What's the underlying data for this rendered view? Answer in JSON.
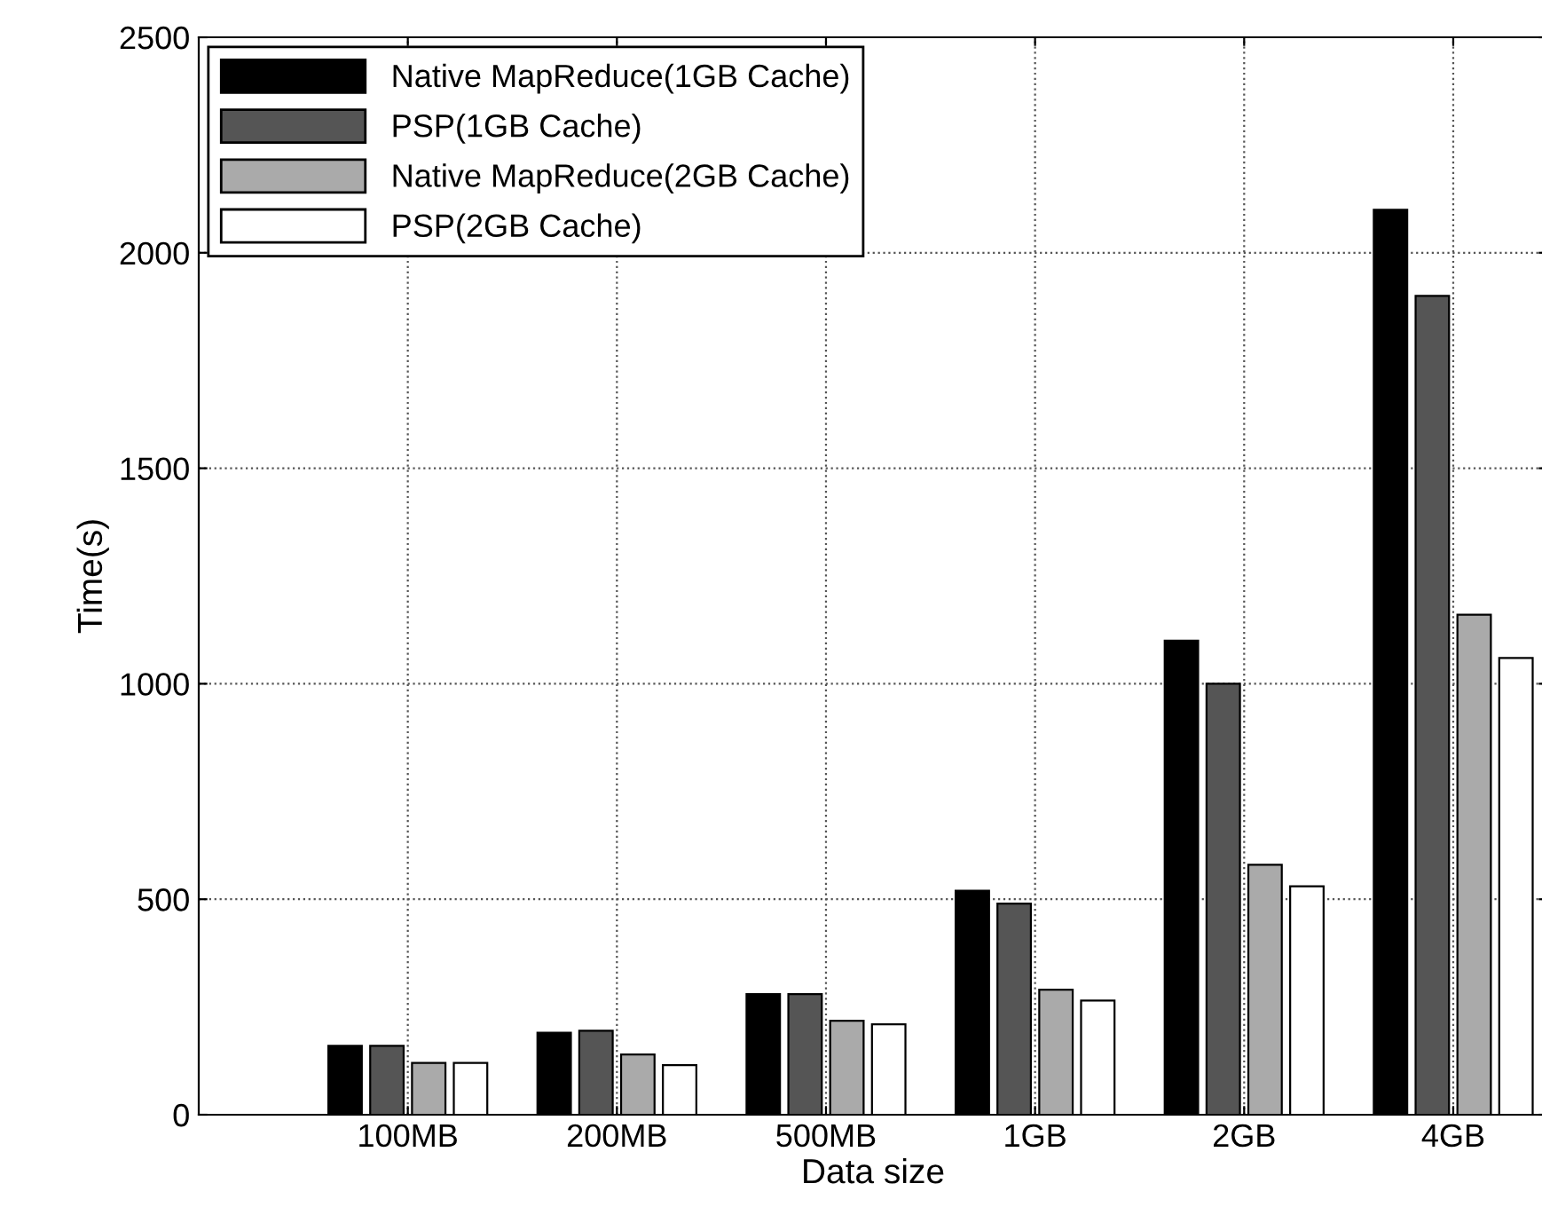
{
  "chart_data": {
    "type": "bar",
    "xlabel": "Data size",
    "ylabel": "Time(s)",
    "categories": [
      "100MB",
      "200MB",
      "500MB",
      "1GB",
      "2GB",
      "4GB"
    ],
    "series": [
      {
        "name": "Native MapReduce(1GB Cache)",
        "color": "#000000",
        "values": [
          160,
          190,
          280,
          520,
          1100,
          2100
        ]
      },
      {
        "name": "PSP(1GB Cache)",
        "color": "#555555",
        "values": [
          160,
          195,
          280,
          490,
          1000,
          1900
        ]
      },
      {
        "name": "Native MapReduce(2GB Cache)",
        "color": "#aaaaaa",
        "values": [
          120,
          140,
          218,
          290,
          580,
          1160
        ]
      },
      {
        "name": "PSP(2GB Cache)",
        "color": "#ffffff",
        "values": [
          120,
          115,
          210,
          265,
          530,
          1060
        ]
      }
    ],
    "ylim": [
      0,
      2500
    ],
    "yticks": [
      0,
      500,
      1000,
      1500,
      2000,
      2500
    ],
    "grid": true,
    "legend": "top left"
  }
}
